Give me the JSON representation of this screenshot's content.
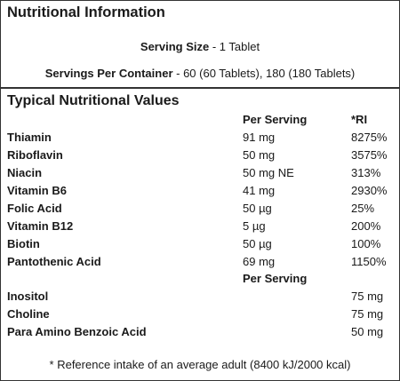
{
  "title": "Nutritional Information",
  "serving_size": {
    "label": "Serving Size",
    "value": " - 1 Tablet"
  },
  "servings_per_container": {
    "label": "Servings Per Container",
    "value": " - 60 (60 Tablets), 180 (180 Tablets)"
  },
  "section_title": "Typical Nutritional Values",
  "headers": {
    "per_serving": "Per Serving",
    "ri": "*RI"
  },
  "rows": [
    {
      "name": "Thiamin",
      "per_serving": "91 mg",
      "ri": "8275%"
    },
    {
      "name": "Riboflavin",
      "per_serving": "50 mg",
      "ri": "3575%"
    },
    {
      "name": "Niacin",
      "per_serving": "50 mg NE",
      "ri": "313%"
    },
    {
      "name": "Vitamin B6",
      "per_serving": "41 mg",
      "ri": "2930%"
    },
    {
      "name": "Folic Acid",
      "per_serving": "50 µg",
      "ri": "25%"
    },
    {
      "name": "Vitamin B12",
      "per_serving": "5 µg",
      "ri": "200%"
    },
    {
      "name": "Biotin",
      "per_serving": "50 µg",
      "ri": "100%"
    },
    {
      "name": "Pantothenic Acid",
      "per_serving": "69 mg",
      "ri": "1150%"
    }
  ],
  "headers2": {
    "per_serving": "Per Serving"
  },
  "rows2": [
    {
      "name": "Inositol",
      "value": "75 mg"
    },
    {
      "name": "Choline",
      "value": "75 mg"
    },
    {
      "name": "Para Amino Benzoic Acid",
      "value": "50 mg"
    }
  ],
  "footnote": "* Reference intake of an average adult (8400 kJ/2000 kcal)"
}
